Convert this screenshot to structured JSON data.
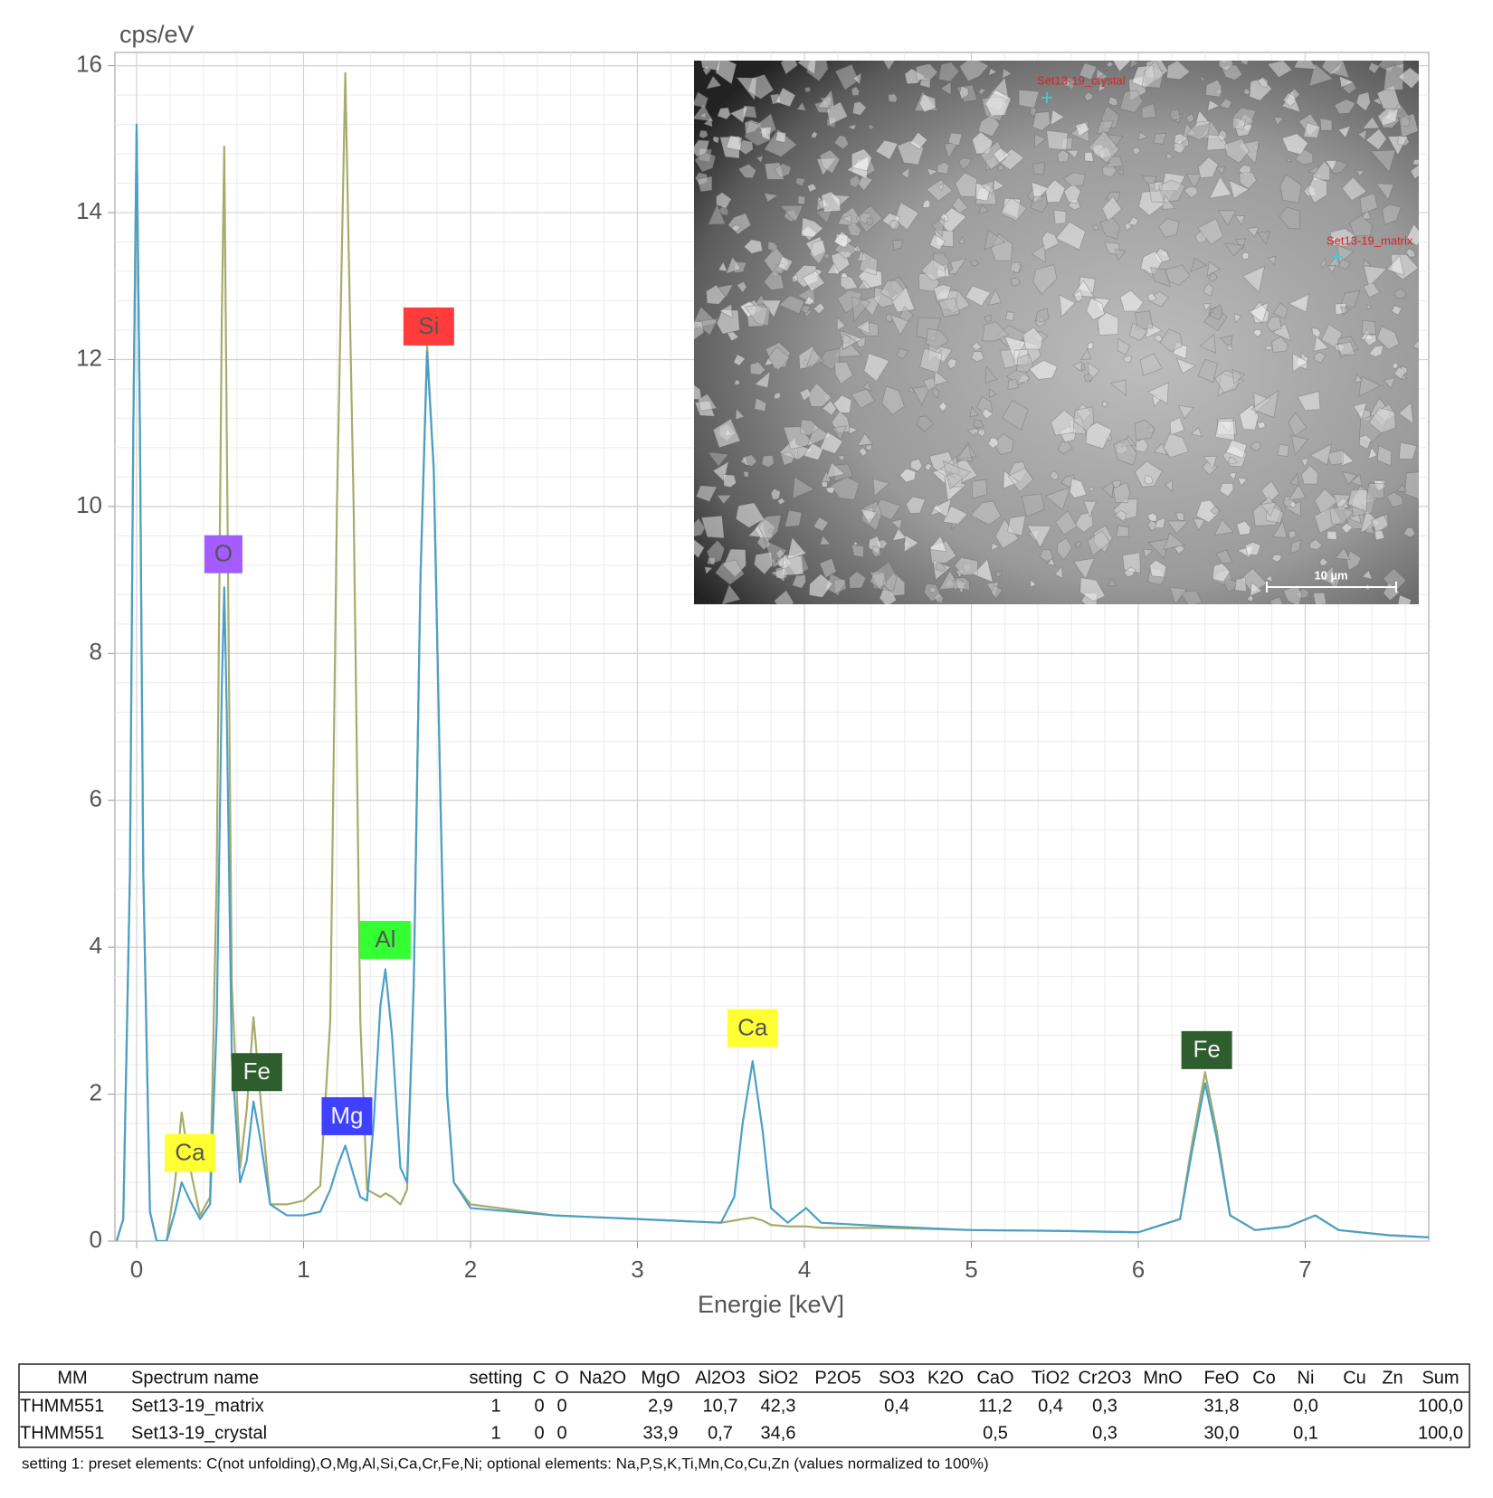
{
  "chart_data": {
    "type": "line",
    "y_label": "cps/eV",
    "x_label": "Energie [keV]",
    "xlim": [
      -0.13,
      7.74
    ],
    "ylim": [
      0,
      16.18
    ],
    "xticks": [
      0,
      1,
      2,
      3,
      4,
      5,
      6,
      7
    ],
    "yticks": [
      0,
      2,
      4,
      6,
      8,
      10,
      12,
      14,
      16
    ],
    "grid": true,
    "x": [
      -0.12,
      -0.08,
      -0.04,
      -0.02,
      0,
      0.02,
      0.04,
      0.08,
      0.12,
      0.18,
      0.23,
      0.27,
      0.32,
      0.38,
      0.44,
      0.48,
      0.51,
      0.525,
      0.54,
      0.57,
      0.62,
      0.66,
      0.7,
      0.74,
      0.8,
      0.9,
      1.0,
      1.1,
      1.16,
      1.2,
      1.25,
      1.3,
      1.34,
      1.38,
      1.42,
      1.46,
      1.49,
      1.53,
      1.58,
      1.62,
      1.66,
      1.7,
      1.74,
      1.78,
      1.82,
      1.86,
      1.9,
      2.0,
      2.5,
      3.0,
      3.5,
      3.58,
      3.63,
      3.69,
      3.75,
      3.8,
      3.9,
      4.01,
      4.1,
      4.5,
      5.0,
      5.5,
      6.0,
      6.25,
      6.32,
      6.4,
      6.47,
      6.55,
      6.7,
      6.9,
      7.06,
      7.2,
      7.5,
      7.75
    ],
    "series": [
      {
        "color": "#a8ab6c",
        "values": [
          0,
          0.3,
          5,
          11,
          15.1,
          11,
          5,
          0.4,
          0,
          0,
          0.8,
          1.75,
          1.0,
          0.35,
          0.6,
          5,
          12.5,
          14.9,
          11,
          3.5,
          1.0,
          1.8,
          3.05,
          2.0,
          0.5,
          0.5,
          0.55,
          0.75,
          3.0,
          10,
          15.9,
          10,
          3,
          0.7,
          0.65,
          0.6,
          0.65,
          0.6,
          0.5,
          0.7,
          3.5,
          9,
          12.2,
          10.5,
          6,
          2,
          0.8,
          0.5,
          0.35,
          0.3,
          0.25,
          0.28,
          0.3,
          0.32,
          0.28,
          0.22,
          0.2,
          0.2,
          0.18,
          0.18,
          0.15,
          0.14,
          0.12,
          0.3,
          1.3,
          2.3,
          1.5,
          0.35,
          0.15,
          0.2,
          0.35,
          0.15,
          0.08,
          0.05
        ]
      },
      {
        "color": "#4aa0c6",
        "values": [
          0,
          0.3,
          5,
          11,
          15.2,
          11,
          5,
          0.4,
          0,
          0,
          0.4,
          0.8,
          0.55,
          0.3,
          0.5,
          3,
          7.5,
          8.9,
          7.2,
          2.5,
          0.8,
          1.1,
          1.9,
          1.4,
          0.5,
          0.35,
          0.35,
          0.4,
          0.7,
          1.0,
          1.3,
          0.9,
          0.6,
          0.55,
          1.6,
          3.2,
          3.7,
          2.8,
          1.0,
          0.8,
          3.5,
          9,
          12.1,
          10.5,
          6,
          2,
          0.8,
          0.45,
          0.35,
          0.3,
          0.25,
          0.6,
          1.6,
          2.45,
          1.5,
          0.45,
          0.25,
          0.45,
          0.25,
          0.2,
          0.15,
          0.14,
          0.12,
          0.3,
          1.2,
          2.15,
          1.4,
          0.35,
          0.15,
          0.2,
          0.35,
          0.15,
          0.08,
          0.05
        ]
      }
    ],
    "annotations": [
      {
        "text": "Ca",
        "x": 0.32,
        "y": 1.2,
        "color": "#ffff33"
      },
      {
        "text": "O",
        "x": 0.52,
        "y": 9.35,
        "color": "#a25cff"
      },
      {
        "text": "Fe",
        "x": 0.72,
        "y": 2.3,
        "color": "#2e5e2e"
      },
      {
        "text": "Mg",
        "x": 1.26,
        "y": 1.7,
        "color": "#4040ff"
      },
      {
        "text": "Al",
        "x": 1.49,
        "y": 4.1,
        "color": "#33ff33"
      },
      {
        "text": "Si",
        "x": 1.75,
        "y": 12.45,
        "color": "#ff3b3b"
      },
      {
        "text": "Ca",
        "x": 3.69,
        "y": 2.9,
        "color": "#ffff33"
      },
      {
        "text": "Fe",
        "x": 6.41,
        "y": 2.6,
        "color": "#2e5e2e"
      }
    ]
  },
  "inset": {
    "labels": [
      "Set13-19_crystal",
      "Set13-19_matrix"
    ],
    "scale_bar": "10 µm"
  },
  "table": {
    "columns": [
      "MM",
      "Spectrum name",
      "setting",
      "C",
      "O",
      "Na2O",
      "MgO",
      "Al2O3",
      "SiO2",
      "P2O5",
      "SO3",
      "K2O",
      "CaO",
      "TiO2",
      "Cr2O3",
      "MnO",
      "FeO",
      "Co",
      "Ni",
      "Cu",
      "Zn",
      "Sum"
    ],
    "rows": [
      [
        "THMM551",
        "Set13-19_matrix",
        "1",
        "0",
        "0",
        null,
        "2,9",
        "10,7",
        "42,3",
        null,
        "0,4",
        null,
        "11,2",
        "0,4",
        "0,3",
        null,
        "31,8",
        null,
        "0,0",
        null,
        null,
        "100,0"
      ],
      [
        "THMM551",
        "Set13-19_crystal",
        "1",
        "0",
        "0",
        null,
        "33,9",
        "0,7",
        "34,6",
        null,
        null,
        null,
        "0,5",
        null,
        "0,3",
        null,
        "30,0",
        null,
        "0,1",
        null,
        null,
        "100,0"
      ]
    ]
  },
  "footnote": "setting 1: preset elements: C(not unfolding),O,Mg,Al,Si,Ca,Cr,Fe,Ni; optional elements: Na,P,S,K,Ti,Mn,Co,Cu,Zn (values normalized to 100%)"
}
